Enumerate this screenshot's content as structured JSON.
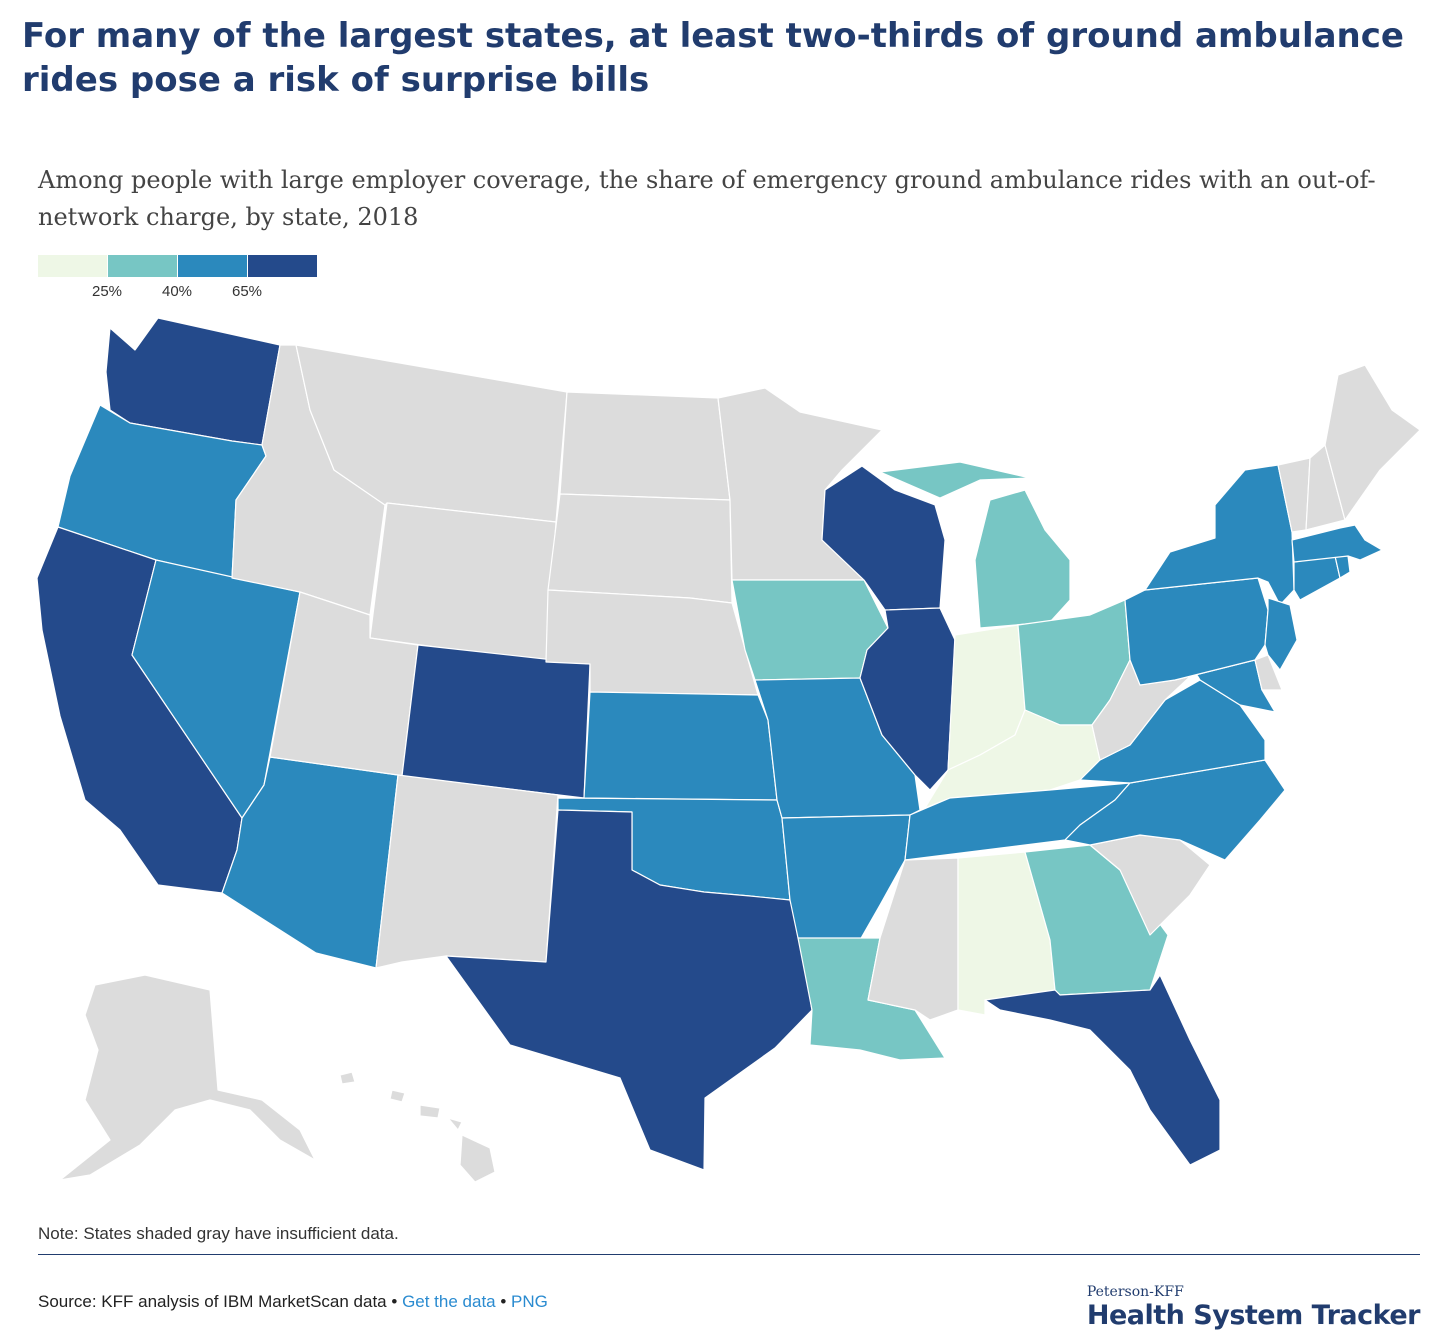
{
  "header": {
    "title": "For many of the largest states, at least two-thirds of ground ambulance rides pose a risk of surprise bills",
    "subtitle": "Among people with large employer coverage, the share of emergency ground ambulance rides with an out-of-network charge, by state, 2018"
  },
  "legend": {
    "colors": [
      "#eef7e6",
      "#77c6c4",
      "#2b89bd",
      "#244a8b"
    ],
    "ticks": [
      "25%",
      "40%",
      "65%"
    ]
  },
  "map": {
    "no_data_color": "#dcdcdc",
    "states": {
      "WA": {
        "bin": 3
      },
      "OR": {
        "bin": 2
      },
      "CA": {
        "bin": 3
      },
      "NV": {
        "bin": 2
      },
      "AZ": {
        "bin": 2
      },
      "CO": {
        "bin": 3
      },
      "TX": {
        "bin": 3
      },
      "KS": {
        "bin": 2
      },
      "OK": {
        "bin": 2
      },
      "MO": {
        "bin": 2
      },
      "AR": {
        "bin": 2
      },
      "IA": {
        "bin": 1
      },
      "LA": {
        "bin": 1
      },
      "WI": {
        "bin": 3
      },
      "IL": {
        "bin": 3
      },
      "MI": {
        "bin": 1
      },
      "IN": {
        "bin": 0
      },
      "KY": {
        "bin": 0
      },
      "AL": {
        "bin": 0
      },
      "OH": {
        "bin": 1
      },
      "GA": {
        "bin": 1
      },
      "FL": {
        "bin": 3
      },
      "TN": {
        "bin": 2
      },
      "NC": {
        "bin": 2
      },
      "VA": {
        "bin": 2
      },
      "MD": {
        "bin": 2
      },
      "PA": {
        "bin": 2
      },
      "NY": {
        "bin": 2
      },
      "NJ": {
        "bin": 2
      },
      "CT": {
        "bin": 2
      },
      "MA": {
        "bin": 2
      },
      "RI": {
        "bin": 2
      },
      "DE": {
        "bin": null
      },
      "ID": {
        "bin": null
      },
      "MT": {
        "bin": null
      },
      "WY": {
        "bin": null
      },
      "UT": {
        "bin": null
      },
      "NM": {
        "bin": null
      },
      "ND": {
        "bin": null
      },
      "SD": {
        "bin": null
      },
      "NE": {
        "bin": null
      },
      "MN": {
        "bin": null
      },
      "MS": {
        "bin": null
      },
      "SC": {
        "bin": null
      },
      "WV": {
        "bin": null
      },
      "VT": {
        "bin": null
      },
      "NH": {
        "bin": null
      },
      "ME": {
        "bin": null
      },
      "AK": {
        "bin": null
      },
      "HI": {
        "bin": null
      }
    }
  },
  "footer": {
    "note": "Note: States shaded gray have insufficient data.",
    "source_text": "Source: KFF analysis of IBM MarketScan data",
    "sep1": " • ",
    "get_data": "Get the data",
    "sep2": " • ",
    "png": "PNG",
    "brand_top": "Peterson-KFF",
    "brand_bottom": "Health System Tracker"
  }
}
